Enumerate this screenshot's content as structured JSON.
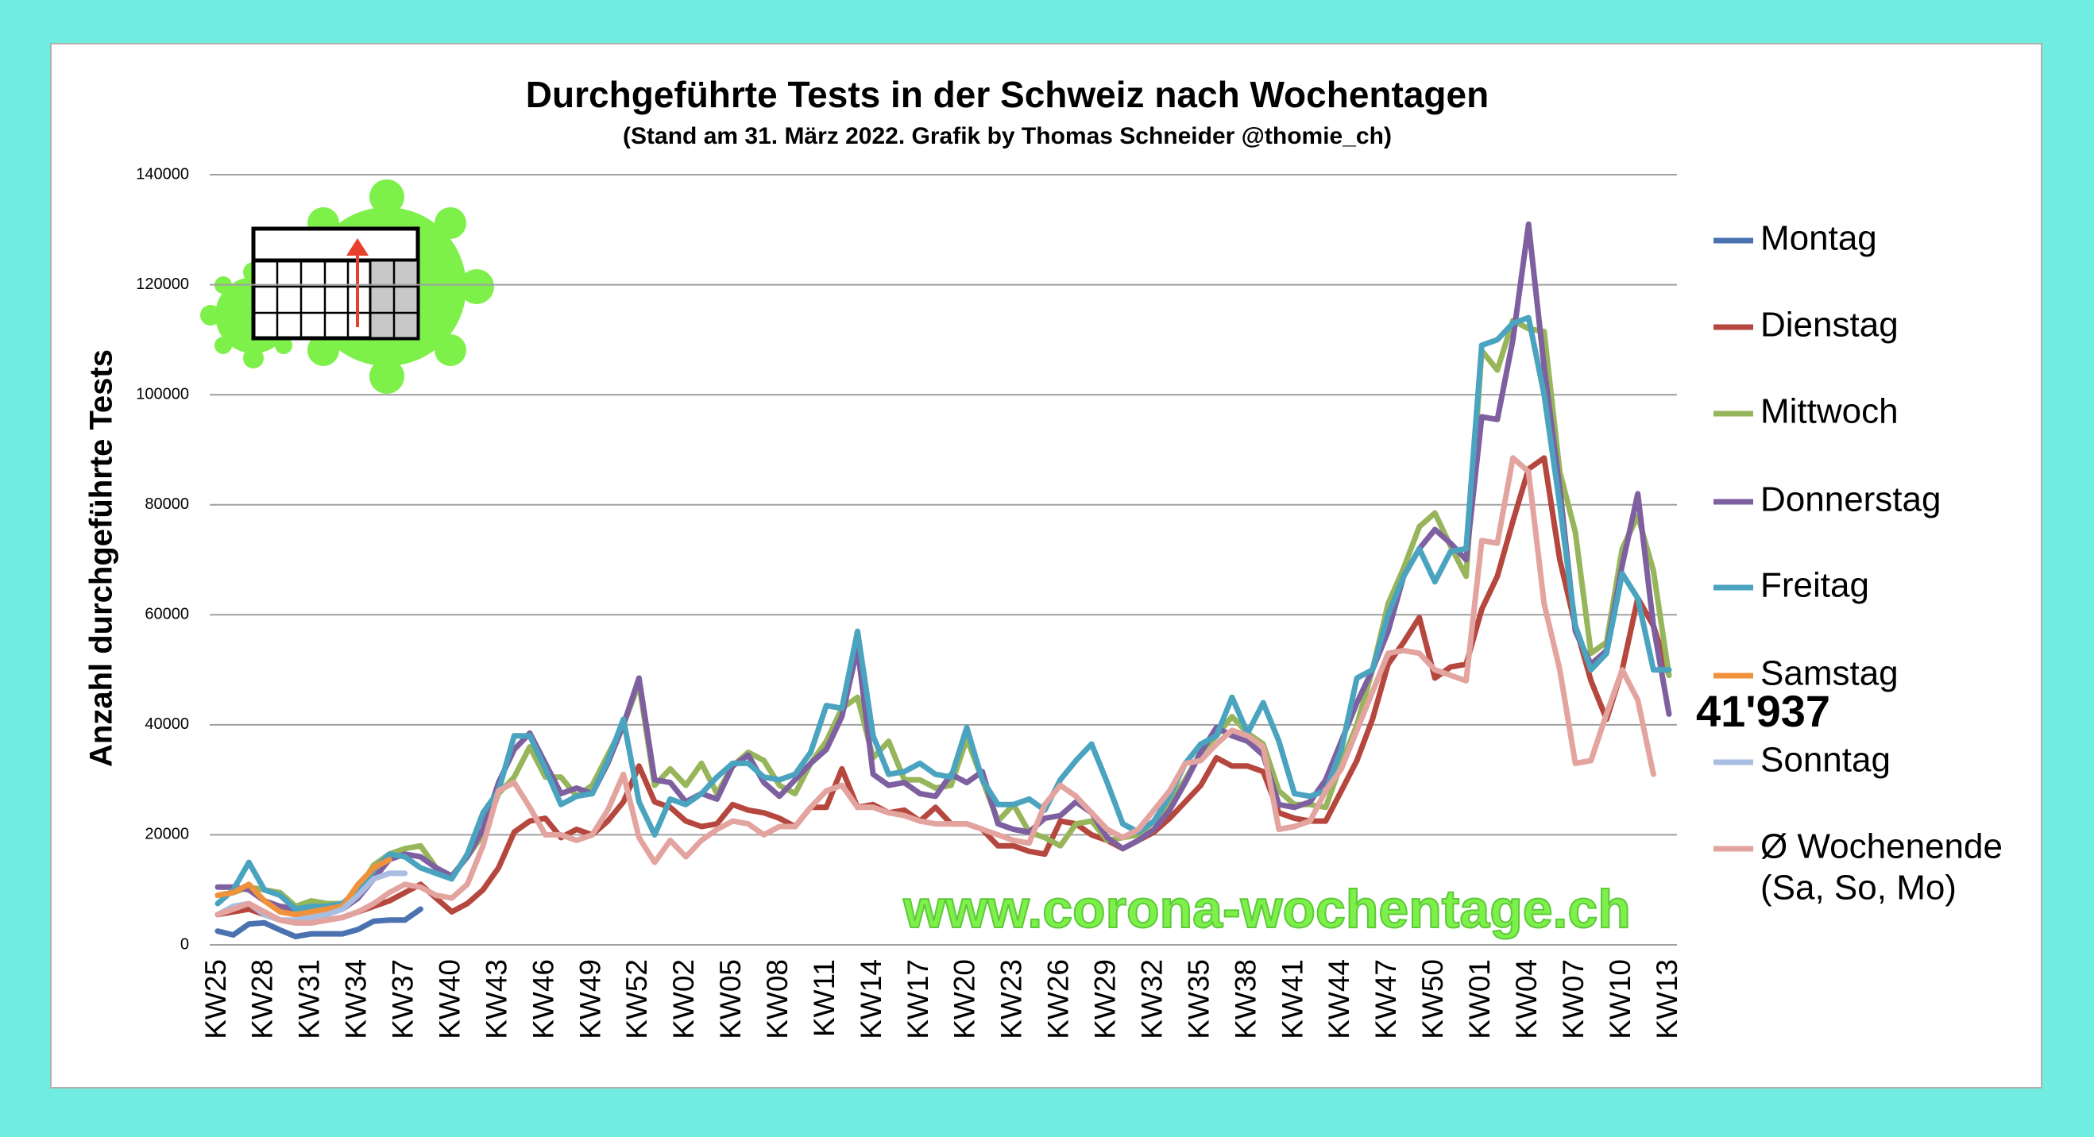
{
  "chart_data": {
    "type": "line",
    "title": "Durchgeführte Tests in der Schweiz nach Wochentagen",
    "subtitle": "(Stand am 31. März 2022. Grafik by Thomas Schneider @thomie_ch)",
    "y_label": "Anzahl durchgeführte Tests",
    "annotation": "41'937",
    "watermark": "www.corona-wochentage.ch",
    "legend_note": "(Sa, So, Mo)",
    "legend_position": "right",
    "grid": true,
    "ylim": [
      0,
      140000
    ],
    "yticks": [
      0,
      20000,
      40000,
      60000,
      80000,
      100000,
      120000,
      140000
    ],
    "categories": [
      "KW25",
      null,
      null,
      "KW28",
      null,
      null,
      "KW31",
      null,
      null,
      "KW34",
      null,
      null,
      "KW37",
      null,
      null,
      "KW40",
      null,
      null,
      "KW43",
      null,
      null,
      "KW46",
      null,
      null,
      "KW49",
      null,
      null,
      "KW52",
      null,
      null,
      "KW02",
      null,
      null,
      "KW05",
      null,
      null,
      "KW08",
      null,
      null,
      "KW11",
      null,
      null,
      "KW14",
      null,
      null,
      "KW17",
      null,
      null,
      "KW20",
      null,
      null,
      "KW23",
      null,
      null,
      "KW26",
      null,
      null,
      "KW29",
      null,
      null,
      "KW32",
      null,
      null,
      "KW35",
      null,
      null,
      "KW38",
      null,
      null,
      "KW41",
      null,
      null,
      "KW44",
      null,
      null,
      "KW47",
      null,
      null,
      "KW50",
      null,
      null,
      "KW01",
      null,
      null,
      "KW04",
      null,
      null,
      "KW07",
      null,
      null,
      "KW10",
      null,
      null,
      "KW13"
    ],
    "series": [
      {
        "name": "Montag",
        "color": "#4a72b0",
        "values": [
          2500,
          1800,
          3800,
          4000,
          2700,
          1500,
          2000,
          2000,
          2000,
          2800,
          4300,
          4500,
          4500,
          6500,
          null,
          null,
          null,
          null,
          null,
          null,
          null,
          null,
          null,
          null,
          null,
          null,
          null,
          null,
          null,
          null,
          null,
          null,
          null,
          null,
          null,
          null,
          null,
          null,
          null,
          null,
          null,
          null,
          null,
          null,
          null,
          null,
          null,
          null,
          null,
          null,
          null,
          null,
          null,
          null,
          null,
          null,
          null,
          null,
          null,
          null,
          null,
          null,
          null,
          null,
          null,
          null,
          null,
          null,
          null,
          null,
          null,
          null,
          null,
          null,
          null,
          null,
          null,
          null,
          null,
          null,
          null,
          null,
          null,
          null,
          null,
          null,
          null,
          null,
          null,
          null,
          null,
          null,
          null,
          null
        ]
      },
      {
        "name": "Dienstag",
        "color": "#b5473e",
        "values": [
          5500,
          6000,
          6500,
          5500,
          4500,
          4000,
          4000,
          4500,
          5000,
          6000,
          7000,
          8000,
          9500,
          11000,
          8500,
          6000,
          7500,
          10000,
          14000,
          20500,
          22500,
          23000,
          19500,
          21000,
          20000,
          22500,
          26000,
          32500,
          26000,
          25000,
          22500,
          21500,
          22000,
          25500,
          24500,
          24000,
          23000,
          21500,
          25000,
          25000,
          32000,
          25000,
          25500,
          24000,
          24500,
          22500,
          25000,
          22000,
          22000,
          21000,
          18000,
          18000,
          17000,
          16500,
          22500,
          22000,
          20000,
          19000,
          17500,
          19000,
          20500,
          23000,
          26000,
          29000,
          34000,
          32500,
          32500,
          31500,
          24000,
          23000,
          22500,
          22500,
          28000,
          33500,
          41000,
          51000,
          55000,
          59500,
          48500,
          50500,
          51000,
          61000,
          67000,
          77000,
          86500,
          88500,
          70000,
          58000,
          48000,
          41000,
          50000,
          63000,
          58000,
          49000
        ]
      },
      {
        "name": "Mittwoch",
        "color": "#97b55a",
        "values": [
          9000,
          9500,
          10500,
          10000,
          9500,
          7000,
          8000,
          7500,
          7500,
          10000,
          14500,
          16500,
          17500,
          18000,
          14000,
          12500,
          16000,
          20000,
          27500,
          30500,
          36000,
          30500,
          30500,
          27000,
          29000,
          34500,
          40000,
          47500,
          29000,
          32000,
          29000,
          33000,
          27500,
          32500,
          35000,
          33500,
          29000,
          27500,
          33000,
          37000,
          43000,
          45000,
          34000,
          37000,
          30000,
          30000,
          28500,
          29000,
          37500,
          30000,
          22500,
          25500,
          20500,
          19500,
          18000,
          22000,
          22500,
          19000,
          19500,
          20000,
          22500,
          26000,
          30000,
          35000,
          38000,
          41500,
          38500,
          36500,
          28000,
          25500,
          25500,
          25000,
          33000,
          40000,
          50000,
          62000,
          68500,
          76000,
          78500,
          72500,
          67000,
          108000,
          104500,
          113500,
          112000,
          111500,
          86000,
          75000,
          53000,
          55000,
          72000,
          78000,
          68000,
          49000
        ]
      },
      {
        "name": "Donnerstag",
        "color": "#7e5fa0",
        "values": [
          10500,
          10500,
          10000,
          8000,
          7000,
          6500,
          6500,
          6500,
          6500,
          8500,
          12000,
          15500,
          16500,
          16000,
          14000,
          12500,
          16000,
          21000,
          29500,
          35500,
          38500,
          33000,
          27500,
          28500,
          27500,
          33000,
          40000,
          48500,
          30000,
          29500,
          26000,
          27500,
          26500,
          32500,
          34500,
          29500,
          27000,
          30000,
          33000,
          35500,
          41500,
          54000,
          31000,
          29000,
          29500,
          27500,
          27000,
          31000,
          29500,
          31500,
          22000,
          21000,
          20500,
          23000,
          23500,
          26000,
          24000,
          19500,
          17500,
          19000,
          21000,
          24500,
          29500,
          35000,
          39500,
          38000,
          37000,
          34500,
          25500,
          25000,
          26000,
          30000,
          37000,
          44000,
          50000,
          57000,
          67000,
          72000,
          75500,
          73000,
          70000,
          96000,
          95500,
          110000,
          131000,
          105000,
          83000,
          57000,
          51000,
          53500,
          69000,
          82000,
          58000,
          41937
        ]
      },
      {
        "name": "Freitag",
        "color": "#4aa3bf",
        "values": [
          7500,
          10000,
          15000,
          10000,
          9000,
          6500,
          7000,
          7000,
          7500,
          10000,
          13500,
          16500,
          16000,
          14000,
          13000,
          12000,
          16500,
          24000,
          28000,
          38000,
          38000,
          32000,
          25500,
          27000,
          27500,
          33500,
          41000,
          26000,
          20000,
          26500,
          25500,
          27500,
          30500,
          33000,
          33000,
          30500,
          30000,
          31000,
          35000,
          43500,
          43000,
          57000,
          38000,
          31000,
          31500,
          33000,
          31000,
          30500,
          39500,
          30000,
          25500,
          25500,
          26500,
          24500,
          30000,
          33500,
          36500,
          29500,
          22000,
          20500,
          22500,
          27000,
          33000,
          36500,
          38000,
          45000,
          38500,
          44000,
          37000,
          27500,
          27000,
          28000,
          35500,
          48500,
          50000,
          60000,
          67000,
          72000,
          66000,
          71500,
          72000,
          109000,
          110000,
          113000,
          114000,
          100000,
          80000,
          58000,
          50000,
          53000,
          67500,
          63000,
          50000,
          50000
        ]
      },
      {
        "name": "Samstag",
        "color": "#f0923c",
        "values": [
          9000,
          9500,
          11000,
          8000,
          6000,
          5500,
          6000,
          6500,
          7000,
          11000,
          14000,
          15500,
          null,
          null,
          null,
          null,
          null,
          null,
          null,
          null,
          null,
          null,
          null,
          null,
          null,
          null,
          null,
          null,
          null,
          null,
          null,
          null,
          null,
          null,
          null,
          null,
          null,
          null,
          null,
          null,
          null,
          null,
          null,
          null,
          null,
          null,
          null,
          null,
          null,
          null,
          null,
          null,
          null,
          null,
          null,
          null,
          null,
          null,
          null,
          null,
          null,
          null,
          null,
          null,
          null,
          null,
          null,
          null,
          null,
          null,
          null,
          null,
          null,
          null,
          null,
          null,
          null,
          null,
          null,
          null,
          null,
          null,
          null,
          null,
          null,
          null,
          null,
          null,
          null,
          null,
          null,
          null,
          null,
          null
        ]
      },
      {
        "name": "Sonntag",
        "color": "#a9bde0",
        "values": [
          5500,
          7000,
          7500,
          5500,
          4500,
          4500,
          5000,
          5500,
          6500,
          9000,
          12000,
          13000,
          13000,
          null,
          null,
          null,
          null,
          null,
          null,
          null,
          null,
          null,
          null,
          null,
          null,
          null,
          null,
          null,
          null,
          null,
          null,
          null,
          null,
          null,
          null,
          null,
          null,
          null,
          null,
          null,
          null,
          null,
          null,
          null,
          null,
          null,
          null,
          null,
          null,
          null,
          null,
          null,
          null,
          null,
          null,
          null,
          null,
          null,
          null,
          null,
          null,
          null,
          null,
          null,
          null,
          null,
          null,
          null,
          null,
          null,
          null,
          null,
          null,
          null,
          null,
          null,
          null,
          null,
          null,
          null,
          null,
          null,
          null,
          null,
          null,
          null,
          null,
          null,
          null,
          null,
          null,
          null,
          null,
          null
        ]
      },
      {
        "name": "Ø Wochenende",
        "color": "#e3a4a0",
        "values": [
          5500,
          6500,
          7500,
          6000,
          4500,
          4000,
          4000,
          4500,
          5000,
          6000,
          7500,
          9500,
          11000,
          10500,
          9000,
          8500,
          11000,
          18000,
          28000,
          29500,
          25000,
          20000,
          20000,
          19000,
          20000,
          24500,
          31000,
          19500,
          15000,
          19000,
          16000,
          19000,
          21000,
          22500,
          22000,
          20000,
          21500,
          21500,
          25000,
          28000,
          29000,
          25000,
          25000,
          24000,
          23500,
          22500,
          22000,
          22000,
          22000,
          21000,
          20000,
          19000,
          18500,
          25500,
          29000,
          27000,
          24000,
          21000,
          19500,
          21000,
          24500,
          28000,
          33000,
          33500,
          36500,
          39000,
          38000,
          36000,
          21000,
          21500,
          22500,
          28000,
          32000,
          39000,
          46000,
          53000,
          53500,
          53000,
          50000,
          49000,
          48000,
          73500,
          73000,
          88500,
          86000,
          62000,
          50000,
          33000,
          33500,
          42000,
          50000,
          44500,
          31000,
          null
        ]
      }
    ]
  }
}
